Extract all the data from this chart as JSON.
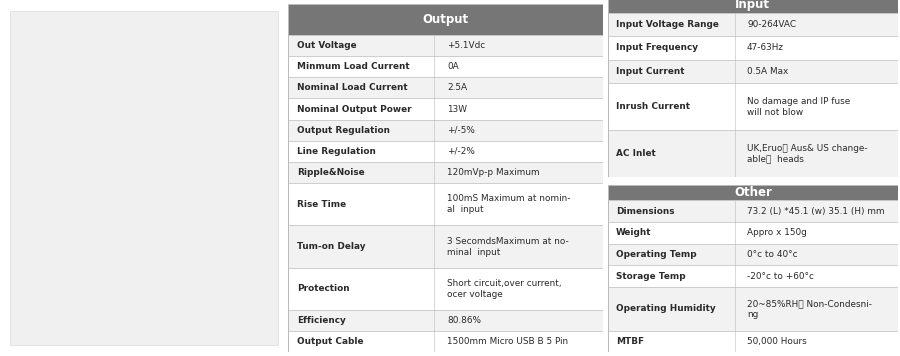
{
  "output_title": "Output",
  "output_rows": [
    [
      "Out Voltage",
      "+5.1Vdc"
    ],
    [
      "Minmum Load Current",
      "0A"
    ],
    [
      "Nominal Load Current",
      "2.5A"
    ],
    [
      "Nominal Output Power",
      "13W"
    ],
    [
      "Output Regulation",
      "+/-5%"
    ],
    [
      "Line Regulation",
      "+/-2%"
    ],
    [
      "Ripple&Noise",
      "120mVp-p Maximum"
    ],
    [
      "Rise Time",
      "100mS Maximum at nomin-\nal  input"
    ],
    [
      "Tum-on Delay",
      "3 SecomdsMaximum at no-\nminal  input"
    ],
    [
      "Protection",
      "Short circuit,over current,\nocer voltage"
    ],
    [
      "Efficiency",
      "80.86%"
    ],
    [
      "Output Cable",
      "1500mm Micro USB B 5 Pin"
    ]
  ],
  "input_title": "Input",
  "input_rows": [
    [
      "Input Voltage Range",
      "90-264VAC"
    ],
    [
      "Input Frequency",
      "47-63Hz"
    ],
    [
      "Input Current",
      "0.5A Max"
    ],
    [
      "Inrush Current",
      "No damage and IP fuse\nwill not blow"
    ],
    [
      "AC Inlet",
      "UK,Eruo， Aus& US change-\nable，  heads"
    ]
  ],
  "other_title": "Other",
  "other_rows": [
    [
      "Dimensions",
      "73.2 (L) *45.1 (w) 35.1 (H) mm"
    ],
    [
      "Weight",
      "Appro x 150g"
    ],
    [
      "Operating Temp",
      "0°c to 40°c"
    ],
    [
      "Storage Temp",
      "-20°c to +60°c"
    ],
    [
      "Operating Humidity",
      "20~85%RH， Non-Condesni-\nng"
    ],
    [
      "MTBF",
      "50,000 Hours"
    ]
  ],
  "header_bg": "#767676",
  "header_text": "#ffffff",
  "row_bg_odd": "#f2f2f2",
  "row_bg_even": "#ffffff",
  "border_color": "#bbbbbb",
  "text_color": "#2a2a2a",
  "fig_bg": "#ffffff",
  "img_bg": "#e8e8e8"
}
